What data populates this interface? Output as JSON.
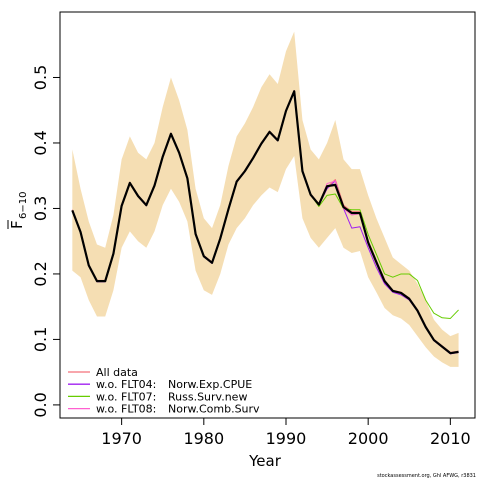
{
  "chart_data": {
    "type": "line",
    "xlabel": "Year",
    "ylabel": "F",
    "ylabel_sub": "6−10",
    "xlim": [
      1962.5,
      2013
    ],
    "ylim": [
      -0.02,
      0.6
    ],
    "xticks": [
      1970,
      1980,
      1990,
      2000,
      2010
    ],
    "yticks": [
      0.0,
      0.1,
      0.2,
      0.3,
      0.4,
      0.5
    ],
    "ytick_labels": [
      "0.0",
      "0.1",
      "0.2",
      "0.3",
      "0.4",
      "0.5"
    ],
    "x": [
      1964,
      1965,
      1966,
      1967,
      1968,
      1969,
      1970,
      1971,
      1972,
      1973,
      1974,
      1975,
      1976,
      1977,
      1978,
      1979,
      1980,
      1981,
      1982,
      1983,
      1984,
      1985,
      1986,
      1987,
      1988,
      1989,
      1990,
      1991,
      1992,
      1993,
      1994,
      1995,
      1996,
      1997,
      1998,
      1999,
      2000,
      2001,
      2002,
      2003,
      2004,
      2005,
      2006,
      2007,
      2008,
      2009,
      2010,
      2011
    ],
    "band_color": "#f5deb3",
    "band": {
      "upper": [
        0.39,
        0.33,
        0.28,
        0.245,
        0.24,
        0.29,
        0.375,
        0.41,
        0.385,
        0.375,
        0.4,
        0.455,
        0.5,
        0.465,
        0.42,
        0.33,
        0.285,
        0.27,
        0.305,
        0.365,
        0.41,
        0.43,
        0.455,
        0.485,
        0.505,
        0.49,
        0.54,
        0.57,
        0.435,
        0.39,
        0.375,
        0.4,
        0.435,
        0.375,
        0.36,
        0.36,
        0.32,
        0.285,
        0.255,
        0.225,
        0.215,
        0.205,
        0.185,
        0.16,
        0.13,
        0.115,
        0.105,
        0.11
      ],
      "lower": [
        0.205,
        0.195,
        0.16,
        0.135,
        0.135,
        0.175,
        0.24,
        0.265,
        0.25,
        0.24,
        0.265,
        0.305,
        0.33,
        0.31,
        0.28,
        0.205,
        0.175,
        0.168,
        0.2,
        0.245,
        0.27,
        0.285,
        0.305,
        0.32,
        0.332,
        0.325,
        0.36,
        0.38,
        0.285,
        0.255,
        0.24,
        0.255,
        0.27,
        0.24,
        0.232,
        0.235,
        0.195,
        0.172,
        0.148,
        0.137,
        0.132,
        0.122,
        0.105,
        0.088,
        0.074,
        0.065,
        0.058,
        0.058
      ]
    },
    "series": [
      {
        "name": "All data",
        "color": "#f4727a",
        "width": 1.2,
        "values": [
          0.298,
          0.265,
          0.214,
          0.19,
          0.19,
          0.232,
          0.305,
          0.34,
          0.32,
          0.306,
          0.336,
          0.38,
          0.415,
          0.386,
          0.347,
          0.262,
          0.228,
          0.218,
          0.255,
          0.3,
          0.342,
          0.358,
          0.378,
          0.4,
          0.418,
          0.405,
          0.45,
          0.48,
          0.358,
          0.322,
          0.307,
          0.332,
          0.344,
          0.305,
          0.295,
          0.295,
          0.25,
          0.22,
          0.19,
          0.175,
          0.172,
          0.163,
          0.145,
          0.12,
          0.1,
          0.09,
          0.08,
          0.082
        ]
      },
      {
        "name": "w.o. FLT04:",
        "survey": "Norw.Exp.CPUE",
        "color": "#a020f0",
        "width": 1.0,
        "values": [
          0.296,
          0.263,
          0.212,
          0.188,
          0.188,
          0.23,
          0.303,
          0.338,
          0.318,
          0.304,
          0.334,
          0.378,
          0.413,
          0.384,
          0.345,
          0.26,
          0.226,
          0.216,
          0.253,
          0.298,
          0.34,
          0.356,
          0.376,
          0.398,
          0.416,
          0.403,
          0.448,
          0.478,
          0.356,
          0.32,
          0.305,
          0.33,
          0.342,
          0.3,
          0.27,
          0.272,
          0.24,
          0.21,
          0.185,
          0.172,
          0.168,
          0.16,
          0.143,
          0.118,
          0.098,
          0.088,
          0.078,
          0.08
        ]
      },
      {
        "name": "w.o. FLT07:",
        "survey": "Russ.Surv.new",
        "color": "#66cc00",
        "width": 1.0,
        "values": [
          0.297,
          0.264,
          0.213,
          0.189,
          0.189,
          0.231,
          0.304,
          0.339,
          0.319,
          0.305,
          0.335,
          0.379,
          0.414,
          0.385,
          0.346,
          0.261,
          0.227,
          0.217,
          0.254,
          0.299,
          0.341,
          0.357,
          0.377,
          0.399,
          0.417,
          0.404,
          0.449,
          0.479,
          0.357,
          0.321,
          0.303,
          0.32,
          0.322,
          0.3,
          0.298,
          0.298,
          0.26,
          0.23,
          0.2,
          0.195,
          0.2,
          0.2,
          0.19,
          0.16,
          0.14,
          0.133,
          0.132,
          0.145
        ]
      },
      {
        "name": "w.o. FLT08:",
        "survey": "Norw.Comb.Surv",
        "color": "#ff60d0",
        "width": 1.0,
        "values": [
          0.297,
          0.264,
          0.213,
          0.189,
          0.189,
          0.231,
          0.304,
          0.339,
          0.319,
          0.305,
          0.335,
          0.379,
          0.414,
          0.385,
          0.346,
          0.261,
          0.227,
          0.217,
          0.254,
          0.299,
          0.341,
          0.357,
          0.377,
          0.399,
          0.417,
          0.404,
          0.449,
          0.479,
          0.357,
          0.321,
          0.306,
          0.338,
          0.342,
          0.3,
          0.29,
          0.292,
          0.246,
          0.216,
          0.188,
          0.174,
          0.17,
          0.161,
          0.144,
          0.119,
          0.099,
          0.089,
          0.079,
          0.081
        ]
      },
      {
        "name": "",
        "color": "#000000",
        "width": 2.2,
        "values": [
          0.297,
          0.264,
          0.213,
          0.189,
          0.189,
          0.231,
          0.304,
          0.339,
          0.319,
          0.305,
          0.335,
          0.379,
          0.414,
          0.385,
          0.346,
          0.261,
          0.227,
          0.217,
          0.254,
          0.299,
          0.341,
          0.357,
          0.377,
          0.399,
          0.417,
          0.404,
          0.449,
          0.479,
          0.357,
          0.321,
          0.306,
          0.334,
          0.336,
          0.302,
          0.293,
          0.293,
          0.248,
          0.218,
          0.189,
          0.174,
          0.171,
          0.162,
          0.144,
          0.119,
          0.099,
          0.089,
          0.079,
          0.081
        ]
      }
    ],
    "legend_position": "bottom-left",
    "grid": false
  },
  "footnote": "stockassessment.org, Ghl AFWG, r3831"
}
